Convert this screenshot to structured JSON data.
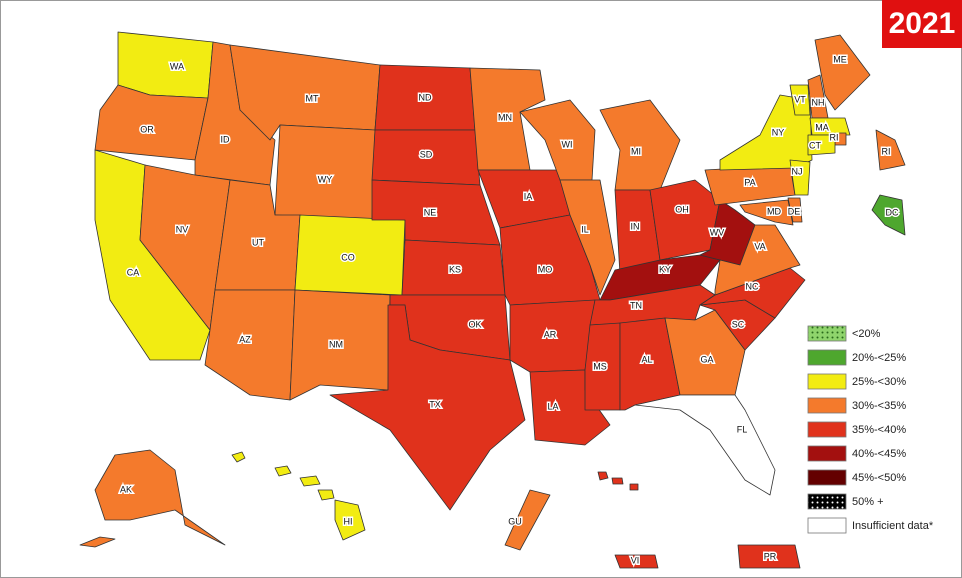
{
  "badge": "2021",
  "states": [
    {
      "label": "WA",
      "color": "#f2ec12"
    },
    {
      "label": "OR",
      "color": "#f47a2c"
    },
    {
      "label": "CA",
      "color": "#f2ec12"
    },
    {
      "label": "ID",
      "color": "#f47a2c"
    },
    {
      "label": "NV",
      "color": "#f47a2c"
    },
    {
      "label": "MT",
      "color": "#f47a2c"
    },
    {
      "label": "WY",
      "color": "#f47a2c"
    },
    {
      "label": "UT",
      "color": "#f47a2c"
    },
    {
      "label": "CO",
      "color": "#f2ec12"
    },
    {
      "label": "AZ",
      "color": "#f47a2c"
    },
    {
      "label": "NM",
      "color": "#f47a2c"
    },
    {
      "label": "ND",
      "color": "#e0321c"
    },
    {
      "label": "SD",
      "color": "#e0321c"
    },
    {
      "label": "NE",
      "color": "#e0321c"
    },
    {
      "label": "KS",
      "color": "#e0321c"
    },
    {
      "label": "OK",
      "color": "#e0321c"
    },
    {
      "label": "TX",
      "color": "#e0321c"
    },
    {
      "label": "MN",
      "color": "#f47a2c"
    },
    {
      "label": "IA",
      "color": "#e0321c"
    },
    {
      "label": "MO",
      "color": "#e0321c"
    },
    {
      "label": "AR",
      "color": "#e0321c"
    },
    {
      "label": "LA",
      "color": "#e0321c"
    },
    {
      "label": "WI",
      "color": "#f47a2c"
    },
    {
      "label": "IL",
      "color": "#f47a2c"
    },
    {
      "label": "MI",
      "color": "#f47a2c"
    },
    {
      "label": "IN",
      "color": "#e0321c"
    },
    {
      "label": "OH",
      "color": "#e0321c"
    },
    {
      "label": "KY",
      "color": "#a3100f"
    },
    {
      "label": "WV",
      "color": "#a3100f"
    },
    {
      "label": "TN",
      "color": "#e0321c"
    },
    {
      "label": "MS",
      "color": "#e0321c"
    },
    {
      "label": "AL",
      "color": "#e0321c"
    },
    {
      "label": "GA",
      "color": "#f47a2c"
    },
    {
      "label": "FL",
      "color": "#ffffff"
    },
    {
      "label": "SC",
      "color": "#e0321c"
    },
    {
      "label": "NC",
      "color": "#e0321c"
    },
    {
      "label": "VA",
      "color": "#f47a2c"
    },
    {
      "label": "PA",
      "color": "#f47a2c"
    },
    {
      "label": "NY",
      "color": "#f2ec12"
    },
    {
      "label": "MD",
      "color": "#f47a2c"
    },
    {
      "label": "DE",
      "color": "#f47a2c"
    },
    {
      "label": "NJ",
      "color": "#f2ec12"
    },
    {
      "label": "VT",
      "color": "#f2ec12"
    },
    {
      "label": "NH",
      "color": "#f47a2c"
    },
    {
      "label": "ME",
      "color": "#f47a2c"
    },
    {
      "label": "MA",
      "color": "#f2ec12"
    },
    {
      "label": "RI",
      "color": "#f47a2c"
    },
    {
      "label": "CT",
      "color": "#f2ec12"
    },
    {
      "label": "DC",
      "color": "#4ea72e"
    },
    {
      "label": "RI",
      "color": "#f47a2c"
    },
    {
      "label": "AK",
      "color": "#f47a2c"
    },
    {
      "label": "HI",
      "color": "#f2ec12"
    },
    {
      "label": "GU",
      "color": "#f47a2c"
    },
    {
      "label": "PR",
      "color": "#e0321c"
    },
    {
      "label": "VI",
      "color": "#e0321c"
    }
  ],
  "legend": [
    {
      "label": "<20%",
      "color": "#8fd46c",
      "pattern": "dots"
    },
    {
      "label": "20%-<25%",
      "color": "#4ea72e"
    },
    {
      "label": "25%-<30%",
      "color": "#f2ec12"
    },
    {
      "label": "30%-<35%",
      "color": "#f47a2c"
    },
    {
      "label": "35%-<40%",
      "color": "#e0321c"
    },
    {
      "label": "40%-<45%",
      "color": "#a3100f"
    },
    {
      "label": "45%-<50%",
      "color": "#640000"
    },
    {
      "label": "50% +",
      "color": "#000000",
      "pattern": "dots"
    },
    {
      "label": "Insufficient data*",
      "color": "#ffffff"
    }
  ]
}
